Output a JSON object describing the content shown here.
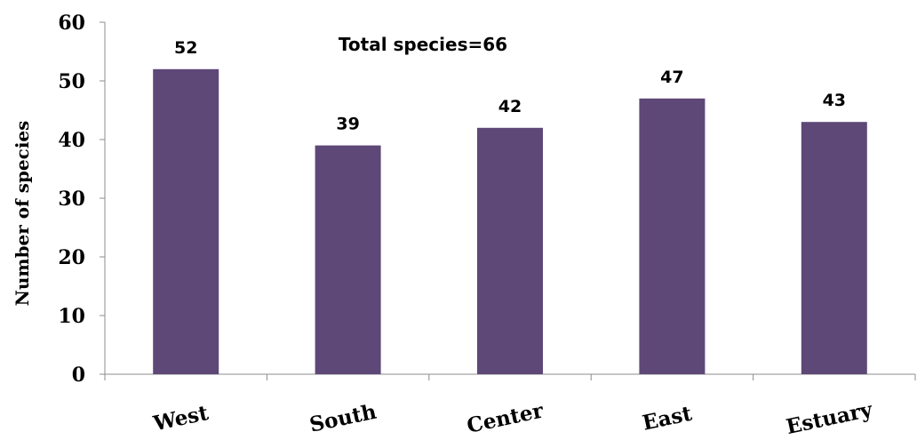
{
  "chart_data": {
    "type": "bar",
    "categories": [
      "West",
      "South",
      "Center",
      "East",
      "Estuary"
    ],
    "values": [
      52,
      39,
      42,
      47,
      43
    ],
    "data_labels": [
      "52",
      "39",
      "42",
      "47",
      "43"
    ],
    "title": "",
    "annotation": "Total species=66",
    "xlabel": "",
    "ylabel": "Number of species",
    "ylim": [
      0,
      60
    ],
    "yticks": [
      "0",
      "10",
      "20",
      "30",
      "40",
      "50",
      "60"
    ],
    "bar_color": "#5e4877",
    "grid": false,
    "legend": "none"
  }
}
